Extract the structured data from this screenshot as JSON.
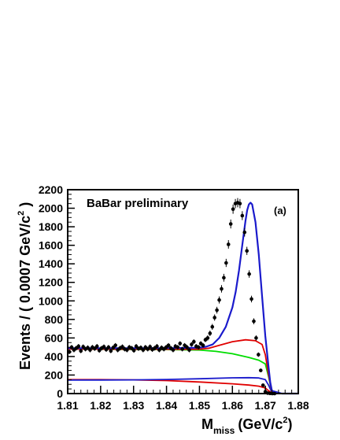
{
  "chart_data": {
    "type": "line",
    "title": "",
    "annotation": "BaBar preliminary",
    "panel_label": "(a)",
    "xlabel_main": "M",
    "xlabel_sub": "miss",
    "xlabel_unit": "(GeV/c",
    "xlabel_sup": "2",
    "xlabel_close": ")",
    "ylabel_main": "Events / ( 0.0007 GeV/c",
    "ylabel_sup": "2",
    "ylabel_close": " )",
    "xlim": [
      1.81,
      1.88
    ],
    "ylim": [
      0,
      2200
    ],
    "xticks": [
      "1.81",
      "1.82",
      "1.83",
      "1.84",
      "1.85",
      "1.86",
      "1.87",
      "1.88"
    ],
    "yticks": [
      "0",
      "200",
      "400",
      "600",
      "800",
      "1000",
      "1200",
      "1400",
      "1600",
      "1800",
      "2000",
      "2200"
    ],
    "grid": false,
    "colors": {
      "data": "#000000",
      "total": "#1a1acc",
      "background": "#00dd00",
      "component_red": "#e00000",
      "component_blue": "#1a1acc"
    },
    "series": [
      {
        "kind": "data",
        "x": [
          1.8105,
          1.8112,
          1.8119,
          1.8126,
          1.8133,
          1.814,
          1.8147,
          1.8154,
          1.8161,
          1.8168,
          1.8175,
          1.8182,
          1.8189,
          1.8196,
          1.8203,
          1.821,
          1.8217,
          1.8224,
          1.8231,
          1.8238,
          1.8245,
          1.8252,
          1.8259,
          1.8266,
          1.8273,
          1.828,
          1.8287,
          1.8294,
          1.8301,
          1.8308,
          1.8315,
          1.8322,
          1.8329,
          1.8336,
          1.8343,
          1.835,
          1.8357,
          1.8364,
          1.8371,
          1.8378,
          1.8385,
          1.8392,
          1.8399,
          1.8406,
          1.8413,
          1.842,
          1.8427,
          1.8434,
          1.8441,
          1.8448,
          1.8455,
          1.8462,
          1.8469,
          1.8476,
          1.8483,
          1.849,
          1.8497,
          1.8504,
          1.8511,
          1.8518,
          1.8525,
          1.8532,
          1.8539,
          1.8546,
          1.8553,
          1.856,
          1.8567,
          1.8574,
          1.8581,
          1.8588,
          1.8595,
          1.8602,
          1.8609,
          1.8616,
          1.8623,
          1.863,
          1.8637,
          1.8644,
          1.8651,
          1.8658,
          1.8665,
          1.8672,
          1.8679,
          1.8686,
          1.8693,
          1.87,
          1.8707,
          1.8714,
          1.8721,
          1.8728
        ],
        "y": [
          450,
          500,
          470,
          490,
          510,
          460,
          505,
          480,
          495,
          470,
          500,
          485,
          510,
          465,
          490,
          505,
          475,
          500,
          460,
          495,
          520,
          470,
          490,
          505,
          480,
          470,
          500,
          490,
          465,
          510,
          485,
          495,
          470,
          500,
          480,
          505,
          475,
          490,
          510,
          470,
          495,
          480,
          500,
          520,
          490,
          470,
          510,
          500,
          540,
          480,
          520,
          500,
          470,
          530,
          560,
          510,
          500,
          540,
          520,
          580,
          600,
          650,
          720,
          820,
          900,
          1010,
          1130,
          1250,
          1410,
          1610,
          1830,
          1990,
          2050,
          2060,
          2050,
          1920,
          1740,
          1540,
          1290,
          1020,
          780,
          600,
          420,
          250,
          90,
          20,
          5,
          2,
          0,
          0
        ],
        "err": [
          25,
          25,
          25,
          25,
          25,
          25,
          25,
          25,
          25,
          25,
          25,
          25,
          25,
          25,
          25,
          25,
          25,
          25,
          25,
          25,
          25,
          25,
          25,
          25,
          25,
          25,
          25,
          25,
          25,
          25,
          25,
          25,
          25,
          25,
          25,
          25,
          25,
          25,
          25,
          25,
          25,
          25,
          25,
          25,
          25,
          25,
          25,
          25,
          25,
          25,
          25,
          25,
          25,
          25,
          25,
          25,
          25,
          25,
          25,
          25,
          28,
          30,
          32,
          34,
          36,
          38,
          40,
          42,
          44,
          46,
          48,
          50,
          50,
          50,
          50,
          48,
          46,
          44,
          40,
          36,
          32,
          28,
          24,
          18,
          12,
          6,
          4,
          2,
          0,
          0
        ]
      },
      {
        "kind": "total",
        "x": [
          1.81,
          1.82,
          1.83,
          1.84,
          1.85,
          1.852,
          1.854,
          1.856,
          1.858,
          1.86,
          1.861,
          1.862,
          1.863,
          1.864,
          1.8645,
          1.865,
          1.8655,
          1.866,
          1.867,
          1.868,
          1.869,
          1.87,
          1.871,
          1.8715,
          1.872,
          1.875,
          1.88
        ],
        "y": [
          490,
          490,
          490,
          490,
          495,
          505,
          530,
          600,
          720,
          930,
          1100,
          1330,
          1600,
          1870,
          1980,
          2040,
          2060,
          2040,
          1850,
          1500,
          1050,
          620,
          280,
          120,
          30,
          0,
          0
        ]
      },
      {
        "kind": "background",
        "x": [
          1.81,
          1.82,
          1.83,
          1.84,
          1.85,
          1.855,
          1.86,
          1.865,
          1.868,
          1.87,
          1.871,
          1.872,
          1.875
        ],
        "y": [
          480,
          478,
          476,
          475,
          470,
          455,
          430,
          390,
          360,
          320,
          180,
          10,
          0
        ]
      },
      {
        "kind": "component_red_upper",
        "x": [
          1.81,
          1.84,
          1.85,
          1.853,
          1.856,
          1.86,
          1.864,
          1.867,
          1.869,
          1.87,
          1.871,
          1.872,
          1.875
        ],
        "y": [
          480,
          478,
          478,
          490,
          520,
          560,
          580,
          570,
          530,
          420,
          200,
          10,
          0
        ]
      },
      {
        "kind": "component_blue",
        "x": [
          1.81,
          1.82,
          1.83,
          1.84,
          1.85,
          1.86,
          1.865,
          1.868,
          1.87,
          1.871,
          1.872,
          1.875
        ],
        "y": [
          145,
          146,
          148,
          152,
          160,
          170,
          172,
          168,
          150,
          90,
          10,
          0
        ]
      },
      {
        "kind": "component_red_lower",
        "x": [
          1.81,
          1.82,
          1.83,
          1.84,
          1.85,
          1.86,
          1.865,
          1.868,
          1.87,
          1.871,
          1.872,
          1.875
        ],
        "y": [
          150,
          150,
          148,
          140,
          125,
          105,
          92,
          80,
          60,
          30,
          5,
          0
        ]
      }
    ]
  }
}
